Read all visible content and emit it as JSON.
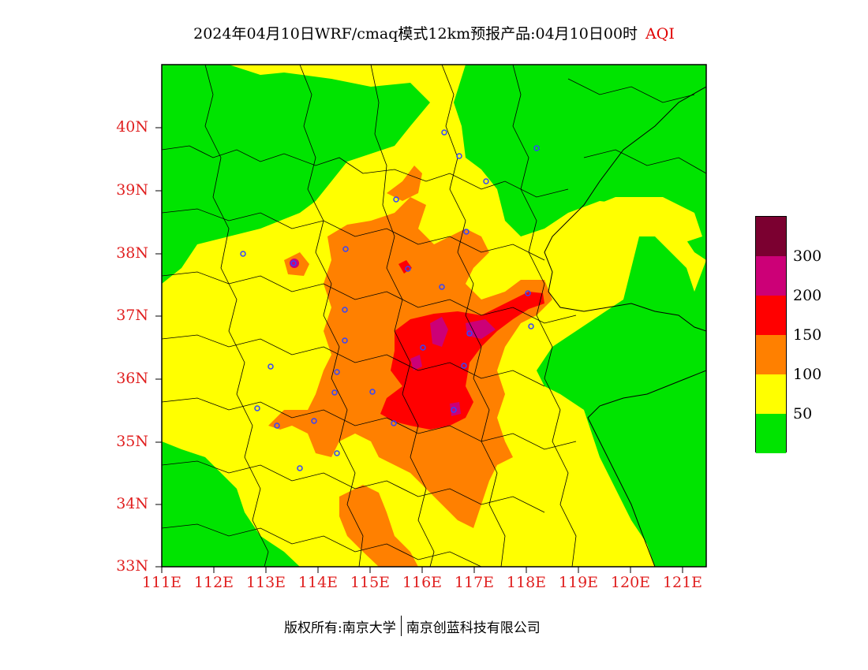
{
  "title": "2024年04月10日WRF/cmaq模式12km预报产品:04月10日00时",
  "variable": "AQI",
  "lat_labels": [
    "40N",
    "39N",
    "38N",
    "37N",
    "36N",
    "35N",
    "34N",
    "33N"
  ],
  "lon_labels": [
    "111E",
    "112E",
    "113E",
    "114E",
    "115E",
    "116E",
    "117E",
    "118E",
    "119E",
    "120E",
    "121E"
  ],
  "legend": {
    "labels": [
      "300",
      "200",
      "150",
      "100",
      "50"
    ],
    "colors": [
      "#7b0030",
      "#cc0077",
      "#ff0000",
      "#ff8000",
      "#ffff00",
      "#00e400"
    ]
  },
  "footer": {
    "left": "版权所有:南京大学",
    "right": "南京创蓝科技有限公司"
  },
  "chart_data": {
    "type": "heatmap",
    "title": "2024年04月10日WRF/cmaq模式12km预报产品:04月10日00时",
    "variable": "AQI",
    "xlim": [
      111,
      121.5
    ],
    "ylim": [
      33,
      41
    ],
    "x_ticks": [
      "111E",
      "112E",
      "113E",
      "114E",
      "115E",
      "116E",
      "117E",
      "118E",
      "119E",
      "120E",
      "121E"
    ],
    "y_ticks": [
      "33N",
      "34N",
      "35N",
      "36N",
      "37N",
      "38N",
      "39N",
      "40N"
    ],
    "levels": [
      0,
      50,
      100,
      150,
      200,
      300
    ],
    "level_colors": [
      "#00e400",
      "#ffff00",
      "#ff8000",
      "#ff0000",
      "#cc0077",
      "#7b0030"
    ]
  }
}
